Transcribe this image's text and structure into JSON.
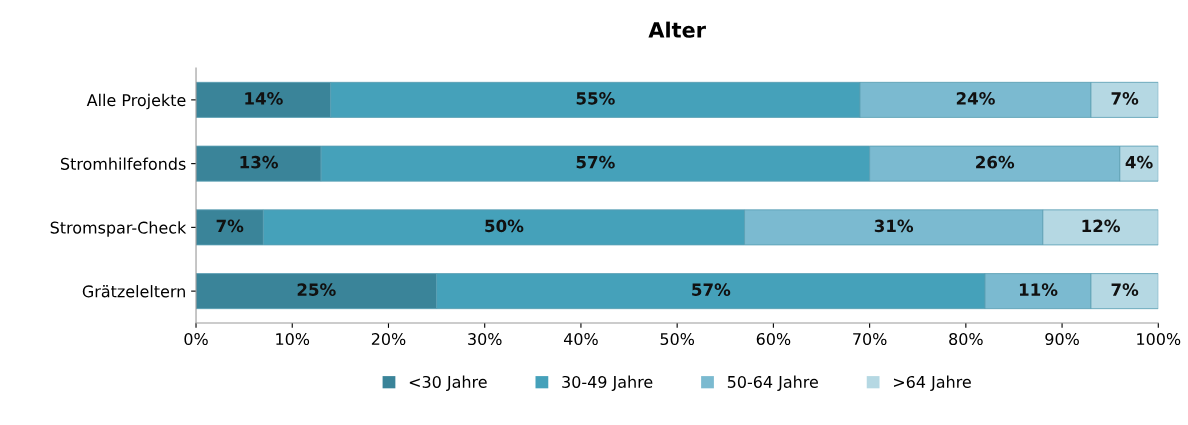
{
  "chart_data": {
    "type": "bar",
    "title": "Alter",
    "orientation": "horizontal",
    "stacked": true,
    "legend": "bottom",
    "grid": false,
    "categories": [
      "Alle Projekte",
      "Stromhilfefonds",
      "Stromspar-Check",
      "Grätzeleltern"
    ],
    "series": [
      {
        "name": "<30 Jahre",
        "color": "#3a8499",
        "values": [
          14,
          13,
          7,
          25
        ],
        "value_labels": [
          "14%",
          "13%",
          "7%",
          "25%"
        ]
      },
      {
        "name": "30-49 Jahre",
        "color": "#45a1ba",
        "values": [
          55,
          57,
          50,
          57
        ],
        "value_labels": [
          "55%",
          "57%",
          "50%",
          "57%"
        ]
      },
      {
        "name": "50-64 Jahre",
        "color": "#7bbad0",
        "values": [
          24,
          26,
          31,
          11
        ],
        "value_labels": [
          "24%",
          "26%",
          "31%",
          "11%"
        ]
      },
      {
        "name": ">64 Jahre",
        "color": "#b5d8e3",
        "values": [
          7,
          4,
          12,
          7
        ],
        "value_labels": [
          "7%",
          "4%",
          "12%",
          "7%"
        ]
      }
    ],
    "xlim": [
      0,
      100
    ],
    "xticks": [
      {
        "value": 0,
        "label": "0%"
      },
      {
        "value": 10,
        "label": "10%"
      },
      {
        "value": 20,
        "label": "20%"
      },
      {
        "value": 30,
        "label": "30%"
      },
      {
        "value": 40,
        "label": "40%"
      },
      {
        "value": 50,
        "label": "50%"
      },
      {
        "value": 60,
        "label": "60%"
      },
      {
        "value": 70,
        "label": "70%"
      },
      {
        "value": 80,
        "label": "80%"
      },
      {
        "value": 90,
        "label": "90%"
      },
      {
        "value": 100,
        "label": "100%"
      }
    ]
  }
}
